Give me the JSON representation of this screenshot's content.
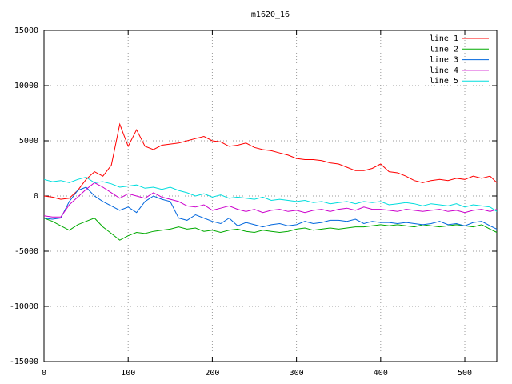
{
  "chart_data": {
    "type": "line",
    "title": "m1620_16",
    "x": [
      0,
      10,
      20,
      30,
      40,
      50,
      60,
      70,
      80,
      90,
      100,
      110,
      120,
      130,
      140,
      150,
      160,
      170,
      180,
      190,
      200,
      210,
      220,
      230,
      240,
      250,
      260,
      270,
      280,
      290,
      300,
      310,
      320,
      330,
      340,
      350,
      360,
      370,
      380,
      390,
      400,
      410,
      420,
      430,
      440,
      450,
      460,
      470,
      480,
      490,
      500,
      510,
      520,
      530,
      538
    ],
    "series": [
      {
        "name": "line 1",
        "color": "#ff0000",
        "values": [
          0,
          -100,
          -300,
          -200,
          500,
          1500,
          2200,
          1800,
          2800,
          6500,
          4500,
          6000,
          4500,
          4200,
          4600,
          4700,
          4800,
          5000,
          5200,
          5400,
          5000,
          4900,
          4500,
          4600,
          4800,
          4400,
          4200,
          4100,
          3900,
          3700,
          3400,
          3300,
          3300,
          3200,
          3000,
          2900,
          2600,
          2300,
          2300,
          2500,
          2900,
          2200,
          2100,
          1800,
          1400,
          1200,
          1400,
          1500,
          1400,
          1600,
          1500,
          1800,
          1600,
          1800,
          1200
        ]
      },
      {
        "name": "line 2",
        "color": "#00aa00",
        "values": [
          -2000,
          -2300,
          -2700,
          -3100,
          -2600,
          -2300,
          -2000,
          -2800,
          -3400,
          -4000,
          -3600,
          -3300,
          -3400,
          -3200,
          -3100,
          -3000,
          -2800,
          -3000,
          -2900,
          -3200,
          -3100,
          -3300,
          -3100,
          -3000,
          -3200,
          -3300,
          -3100,
          -3200,
          -3300,
          -3200,
          -3000,
          -2900,
          -3100,
          -3000,
          -2900,
          -3000,
          -2900,
          -2800,
          -2800,
          -2700,
          -2600,
          -2700,
          -2600,
          -2700,
          -2800,
          -2600,
          -2700,
          -2800,
          -2700,
          -2600,
          -2700,
          -2800,
          -2600,
          -3000,
          -3300
        ]
      },
      {
        "name": "line 3",
        "color": "#0066dd",
        "values": [
          -2000,
          -2100,
          -2000,
          -500,
          500,
          800,
          0,
          -500,
          -900,
          -1300,
          -1000,
          -1500,
          -500,
          0,
          -300,
          -500,
          -2000,
          -2200,
          -1700,
          -2000,
          -2300,
          -2500,
          -2000,
          -2700,
          -2400,
          -2600,
          -2800,
          -2600,
          -2500,
          -2700,
          -2600,
          -2300,
          -2500,
          -2400,
          -2200,
          -2200,
          -2300,
          -2100,
          -2500,
          -2300,
          -2400,
          -2400,
          -2500,
          -2400,
          -2500,
          -2600,
          -2500,
          -2300,
          -2600,
          -2500,
          -2700,
          -2400,
          -2300,
          -2700,
          -3000
        ]
      },
      {
        "name": "line 4",
        "color": "#cc00cc",
        "values": [
          -1800,
          -1900,
          -1900,
          -800,
          -100,
          600,
          1200,
          800,
          300,
          -200,
          200,
          0,
          -200,
          300,
          -100,
          -300,
          -500,
          -900,
          -1000,
          -800,
          -1300,
          -1100,
          -900,
          -1200,
          -1400,
          -1200,
          -1500,
          -1300,
          -1200,
          -1400,
          -1300,
          -1500,
          -1300,
          -1200,
          -1400,
          -1200,
          -1100,
          -1300,
          -1000,
          -1200,
          -1200,
          -1300,
          -1400,
          -1200,
          -1300,
          -1400,
          -1300,
          -1200,
          -1400,
          -1300,
          -1500,
          -1300,
          -1200,
          -1400,
          -1200
        ]
      },
      {
        "name": "line 5",
        "color": "#00dddd",
        "values": [
          1500,
          1300,
          1400,
          1200,
          1500,
          1700,
          1200,
          1300,
          1100,
          800,
          900,
          1000,
          700,
          800,
          600,
          800,
          500,
          300,
          0,
          200,
          -100,
          100,
          -200,
          -100,
          -200,
          -300,
          -100,
          -400,
          -300,
          -400,
          -500,
          -400,
          -600,
          -500,
          -700,
          -600,
          -500,
          -700,
          -500,
          -600,
          -500,
          -800,
          -700,
          -600,
          -700,
          -900,
          -700,
          -800,
          -900,
          -700,
          -1000,
          -800,
          -900,
          -1000,
          -1400
        ]
      }
    ],
    "xlim": [
      0,
      538
    ],
    "ylim": [
      -15000,
      15000
    ],
    "xticks": [
      0,
      100,
      200,
      300,
      400,
      500
    ],
    "yticks": [
      -15000,
      -10000,
      -5000,
      0,
      5000,
      10000,
      15000
    ],
    "grid": true,
    "legend": "top-right"
  }
}
